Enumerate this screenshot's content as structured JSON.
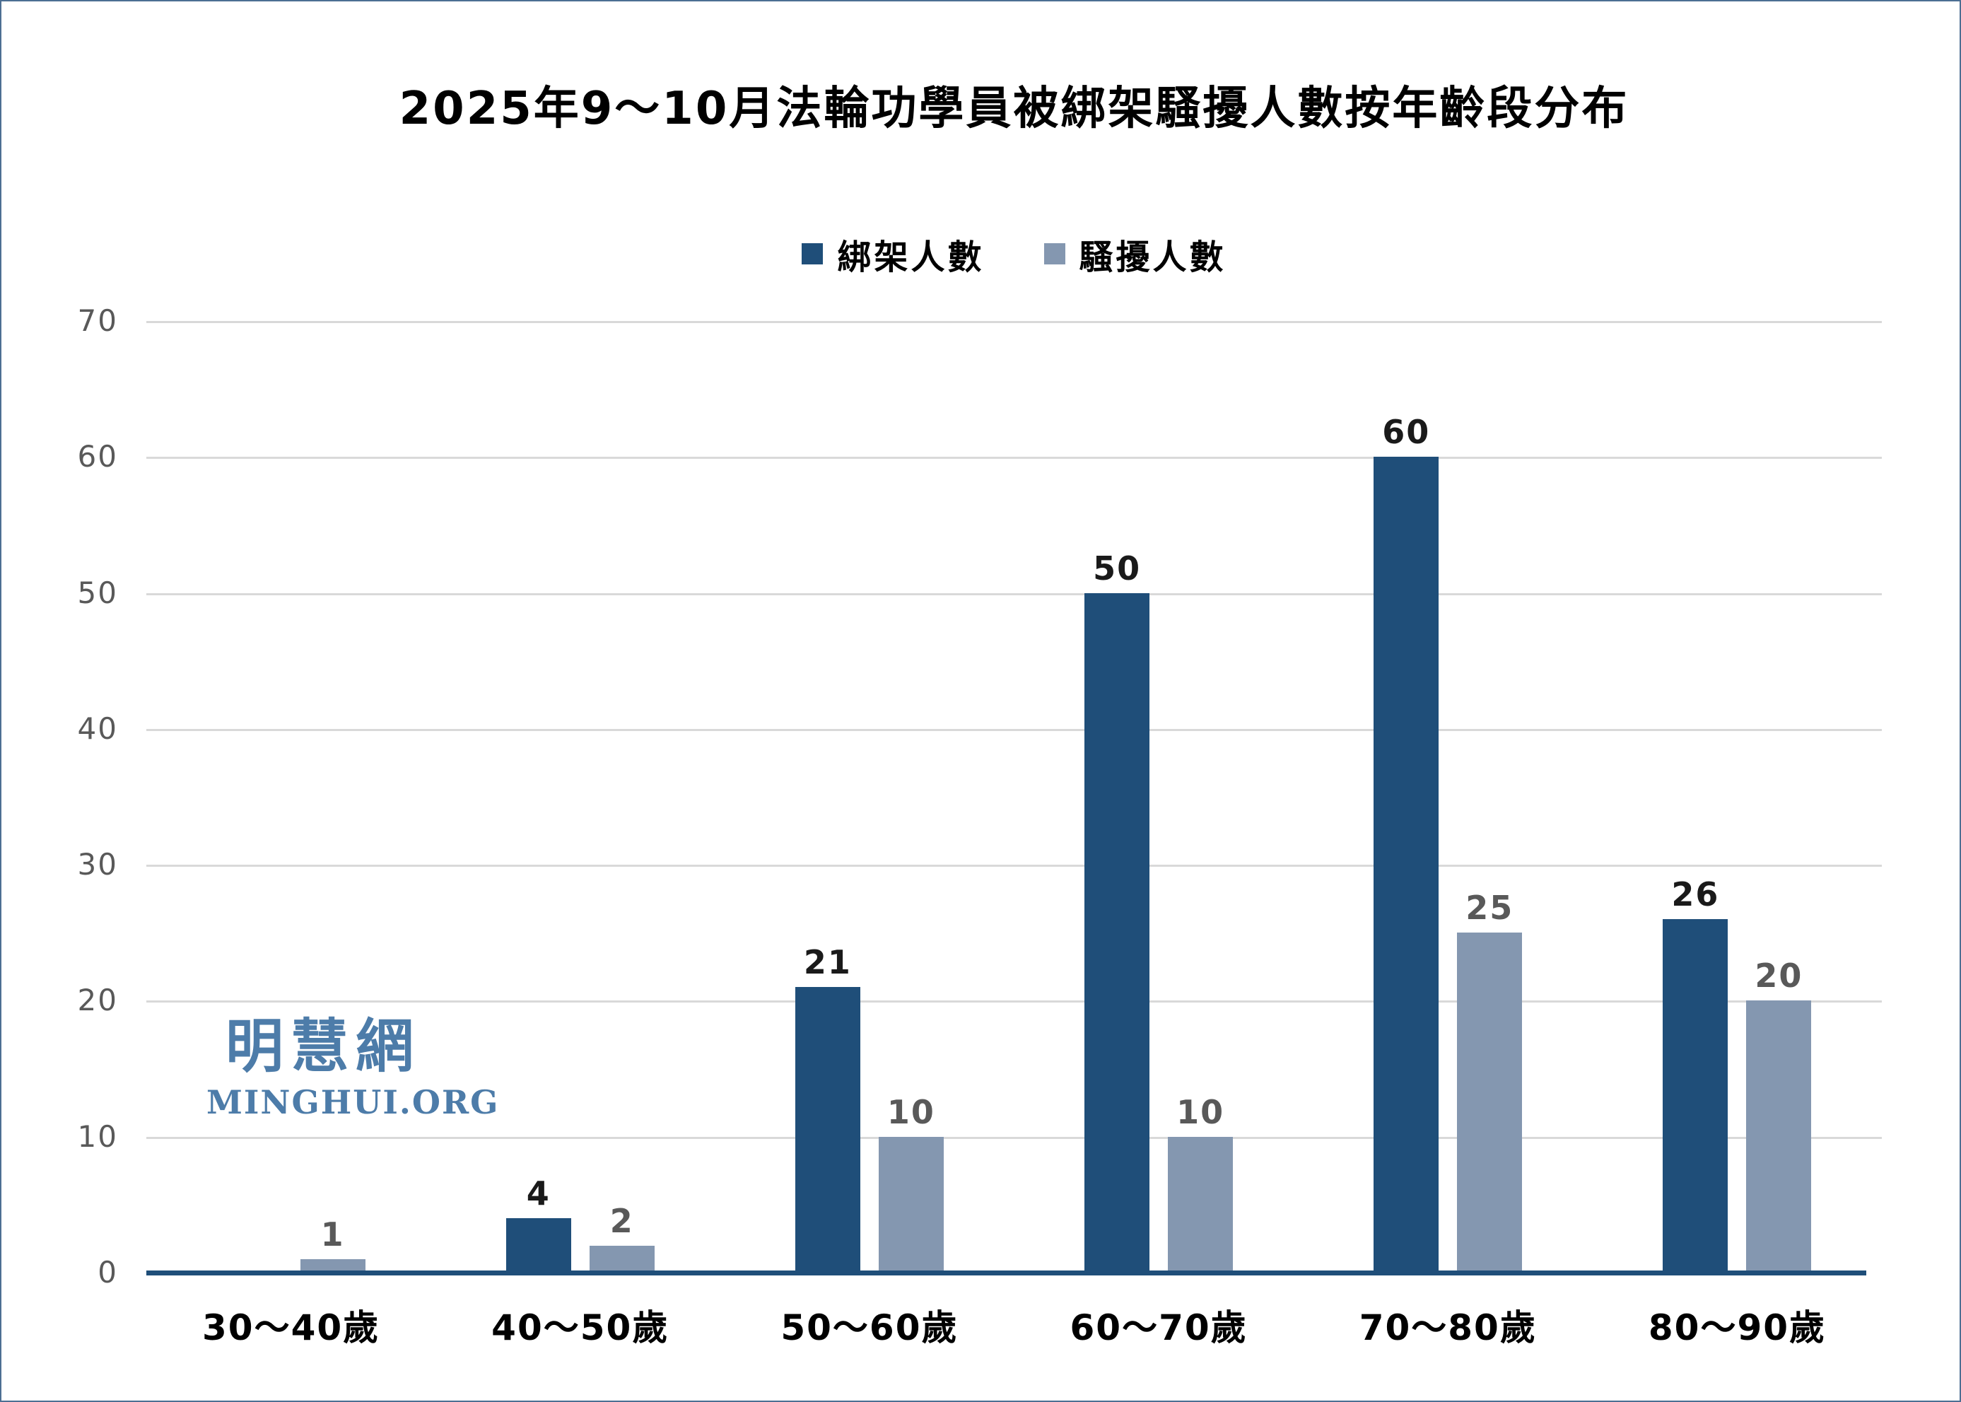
{
  "chart_data": {
    "type": "bar",
    "title": "2025年9～10月法輪功學員被綁架騷擾人數按年齡段分布",
    "categories": [
      "30～40歲",
      "40～50歲",
      "50～60歲",
      "60～70歲",
      "70～80歲",
      "80～90歲"
    ],
    "series": [
      {
        "name": "綁架人數",
        "values": [
          0,
          4,
          21,
          50,
          60,
          26
        ],
        "color": "#1F4E79",
        "label_color": "#1a1a1a"
      },
      {
        "name": "騷擾人數",
        "values": [
          1,
          2,
          10,
          10,
          25,
          20
        ],
        "color": "#8497B0",
        "label_color": "#595959"
      }
    ],
    "xlabel": "",
    "ylabel": "",
    "ylim": [
      0,
      70
    ],
    "ytick_step": 10,
    "yticks": [
      0,
      10,
      20,
      30,
      40,
      50,
      60,
      70
    ],
    "grid": "horizontal",
    "gridline_color": "#d9d9d9",
    "axis_line_color": "#1F4E79",
    "ytick_label_color": "#595959",
    "legend_position": "top-center",
    "hide_zero_value_labels": true
  },
  "watermark": {
    "chinese": "明慧網",
    "latin": "MINGHUI.ORG",
    "color": "#4d7ca9"
  },
  "frame": {
    "border_color": "#4c6f93",
    "background_color": "#ffffff"
  }
}
